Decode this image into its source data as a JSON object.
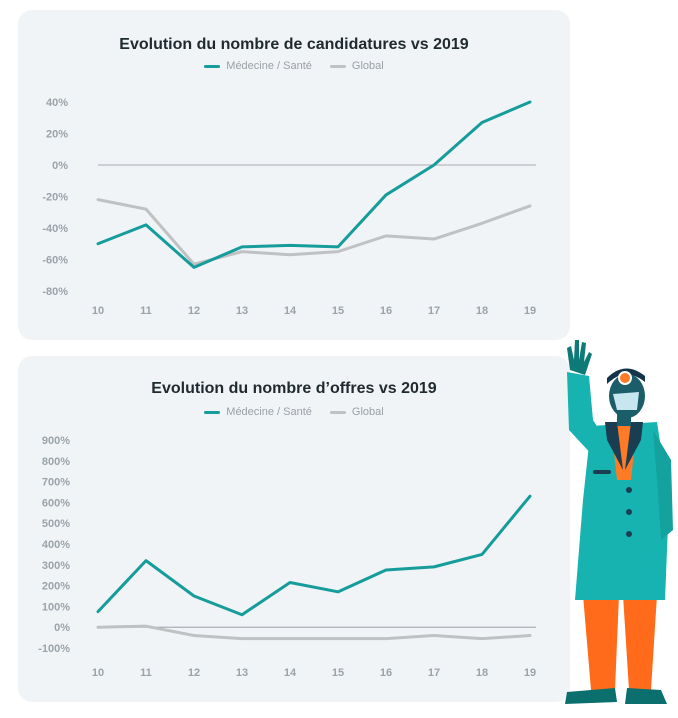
{
  "colors": {
    "medecine": "#169c9a",
    "global": "#bfc1c3",
    "zero_line": "#8c9399"
  },
  "chart_data": [
    {
      "type": "line",
      "title": "Evolution du nombre de candidatures vs 2019",
      "x": [
        "10",
        "11",
        "12",
        "13",
        "14",
        "15",
        "16",
        "17",
        "18",
        "19"
      ],
      "yticks": [
        "40%",
        "20%",
        "0%",
        "-20%",
        "-40%",
        "-60%",
        "-80%"
      ],
      "ylim": [
        -80,
        40
      ],
      "grid": false,
      "legend": "top-center",
      "series": [
        {
          "name": "Médecine / Santé",
          "values": [
            -50,
            -38,
            -65,
            -52,
            -51,
            -52,
            -19,
            0,
            27,
            40
          ]
        },
        {
          "name": "Global",
          "values": [
            -22,
            -28,
            -63,
            -55,
            -57,
            -55,
            -45,
            -47,
            -37,
            -26
          ]
        }
      ]
    },
    {
      "type": "line",
      "title": "Evolution du nombre d’offres vs 2019",
      "x": [
        "10",
        "11",
        "12",
        "13",
        "14",
        "15",
        "16",
        "17",
        "18",
        "19"
      ],
      "yticks": [
        "900%",
        "800%",
        "700%",
        "600%",
        "500%",
        "400%",
        "300%",
        "200%",
        "100%",
        "0%",
        "-100%"
      ],
      "ylim": [
        -100,
        900
      ],
      "grid": false,
      "legend": "top-center",
      "series": [
        {
          "name": "Médecine / Santé",
          "values": [
            75,
            320,
            150,
            60,
            215,
            170,
            275,
            290,
            350,
            630
          ]
        },
        {
          "name": "Global",
          "values": [
            0,
            5,
            -40,
            -55,
            -55,
            -55,
            -55,
            -40,
            -55,
            -40
          ]
        }
      ]
    }
  ]
}
